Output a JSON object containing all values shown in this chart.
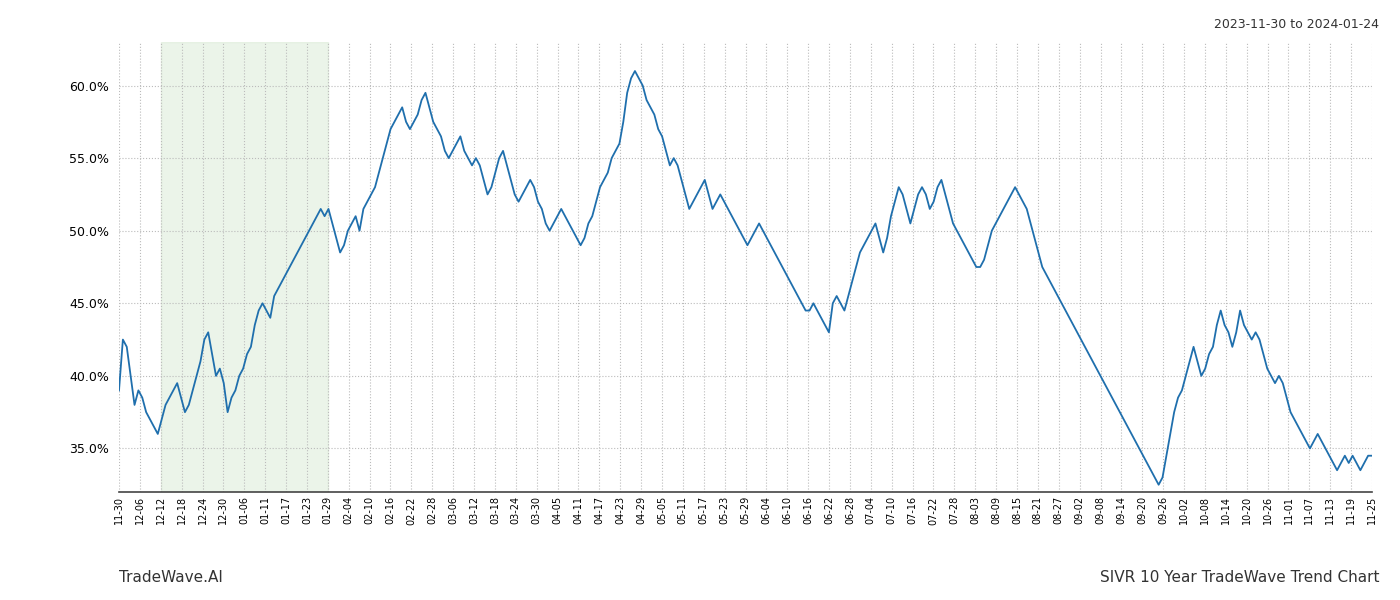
{
  "title_top_right": "2023-11-30 to 2024-01-24",
  "title_bottom_left": "TradeWave.AI",
  "title_bottom_right": "SIVR 10 Year TradeWave Trend Chart",
  "background_color": "#ffffff",
  "line_color": "#1f6fad",
  "highlight_color": "#d4e8d0",
  "highlight_alpha": 0.45,
  "ylim": [
    32,
    63
  ],
  "yticks": [
    35.0,
    40.0,
    45.0,
    50.0,
    55.0,
    60.0
  ],
  "grid_color": "#bbbbbb",
  "grid_style": ":",
  "x_labels": [
    "11-30",
    "12-06",
    "12-12",
    "12-18",
    "12-24",
    "12-30",
    "01-06",
    "01-11",
    "01-17",
    "01-23",
    "01-29",
    "02-04",
    "02-10",
    "02-16",
    "02-22",
    "02-28",
    "03-06",
    "03-12",
    "03-18",
    "03-24",
    "03-30",
    "04-05",
    "04-11",
    "04-17",
    "04-23",
    "04-29",
    "05-05",
    "05-11",
    "05-17",
    "05-23",
    "05-29",
    "06-04",
    "06-10",
    "06-16",
    "06-22",
    "06-28",
    "07-04",
    "07-10",
    "07-16",
    "07-22",
    "07-28",
    "08-03",
    "08-09",
    "08-15",
    "08-21",
    "08-27",
    "09-02",
    "09-08",
    "09-14",
    "09-20",
    "09-26",
    "10-02",
    "10-08",
    "10-14",
    "10-20",
    "10-26",
    "11-01",
    "11-07",
    "11-13",
    "11-19",
    "11-25"
  ],
  "highlight_label_start": "12-12",
  "highlight_label_end": "01-29",
  "y_values": [
    39.0,
    42.5,
    42.0,
    40.0,
    38.0,
    39.0,
    38.5,
    37.5,
    37.0,
    36.5,
    36.0,
    37.0,
    38.0,
    38.5,
    39.0,
    39.5,
    38.5,
    37.5,
    38.0,
    39.0,
    40.0,
    41.0,
    42.5,
    43.0,
    41.5,
    40.0,
    40.5,
    39.5,
    37.5,
    38.5,
    39.0,
    40.0,
    40.5,
    41.5,
    42.0,
    43.5,
    44.5,
    45.0,
    44.5,
    44.0,
    45.5,
    46.0,
    46.5,
    47.0,
    47.5,
    48.0,
    48.5,
    49.0,
    49.5,
    50.0,
    50.5,
    51.0,
    51.5,
    51.0,
    51.5,
    50.5,
    49.5,
    48.5,
    49.0,
    50.0,
    50.5,
    51.0,
    50.0,
    51.5,
    52.0,
    52.5,
    53.0,
    54.0,
    55.0,
    56.0,
    57.0,
    57.5,
    58.0,
    58.5,
    57.5,
    57.0,
    57.5,
    58.0,
    59.0,
    59.5,
    58.5,
    57.5,
    57.0,
    56.5,
    55.5,
    55.0,
    55.5,
    56.0,
    56.5,
    55.5,
    55.0,
    54.5,
    55.0,
    54.5,
    53.5,
    52.5,
    53.0,
    54.0,
    55.0,
    55.5,
    54.5,
    53.5,
    52.5,
    52.0,
    52.5,
    53.0,
    53.5,
    53.0,
    52.0,
    51.5,
    50.5,
    50.0,
    50.5,
    51.0,
    51.5,
    51.0,
    50.5,
    50.0,
    49.5,
    49.0,
    49.5,
    50.5,
    51.0,
    52.0,
    53.0,
    53.5,
    54.0,
    55.0,
    55.5,
    56.0,
    57.5,
    59.5,
    60.5,
    61.0,
    60.5,
    60.0,
    59.0,
    58.5,
    58.0,
    57.0,
    56.5,
    55.5,
    54.5,
    55.0,
    54.5,
    53.5,
    52.5,
    51.5,
    52.0,
    52.5,
    53.0,
    53.5,
    52.5,
    51.5,
    52.0,
    52.5,
    52.0,
    51.5,
    51.0,
    50.5,
    50.0,
    49.5,
    49.0,
    49.5,
    50.0,
    50.5,
    50.0,
    49.5,
    49.0,
    48.5,
    48.0,
    47.5,
    47.0,
    46.5,
    46.0,
    45.5,
    45.0,
    44.5,
    44.5,
    45.0,
    44.5,
    44.0,
    43.5,
    43.0,
    45.0,
    45.5,
    45.0,
    44.5,
    45.5,
    46.5,
    47.5,
    48.5,
    49.0,
    49.5,
    50.0,
    50.5,
    49.5,
    48.5,
    49.5,
    51.0,
    52.0,
    53.0,
    52.5,
    51.5,
    50.5,
    51.5,
    52.5,
    53.0,
    52.5,
    51.5,
    52.0,
    53.0,
    53.5,
    52.5,
    51.5,
    50.5,
    50.0,
    49.5,
    49.0,
    48.5,
    48.0,
    47.5,
    47.5,
    48.0,
    49.0,
    50.0,
    50.5,
    51.0,
    51.5,
    52.0,
    52.5,
    53.0,
    52.5,
    52.0,
    51.5,
    50.5,
    49.5,
    48.5,
    47.5,
    47.0,
    46.5,
    46.0,
    45.5,
    45.0,
    44.5,
    44.0,
    43.5,
    43.0,
    42.5,
    42.0,
    41.5,
    41.0,
    40.5,
    40.0,
    39.5,
    39.0,
    38.5,
    38.0,
    37.5,
    37.0,
    36.5,
    36.0,
    35.5,
    35.0,
    34.5,
    34.0,
    33.5,
    33.0,
    32.5,
    33.0,
    34.5,
    36.0,
    37.5,
    38.5,
    39.0,
    40.0,
    41.0,
    42.0,
    41.0,
    40.0,
    40.5,
    41.5,
    42.0,
    43.5,
    44.5,
    43.5,
    43.0,
    42.0,
    43.0,
    44.5,
    43.5,
    43.0,
    42.5,
    43.0,
    42.5,
    41.5,
    40.5,
    40.0,
    39.5,
    40.0,
    39.5,
    38.5,
    37.5,
    37.0,
    36.5,
    36.0,
    35.5,
    35.0,
    35.5,
    36.0,
    35.5,
    35.0,
    34.5,
    34.0,
    33.5,
    34.0,
    34.5,
    34.0,
    34.5,
    34.0,
    33.5,
    34.0,
    34.5,
    34.5
  ],
  "line_width": 1.3,
  "figsize": [
    14.0,
    6.0
  ],
  "dpi": 100
}
